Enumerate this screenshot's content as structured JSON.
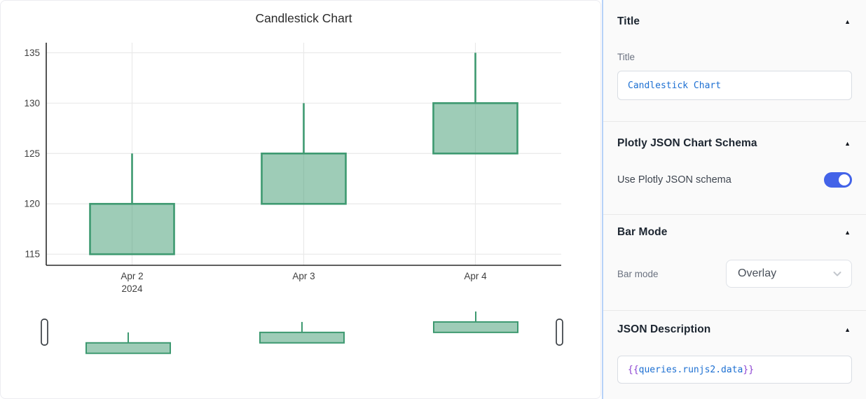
{
  "chart_data": {
    "type": "candlestick",
    "title": "Candlestick Chart",
    "categories": [
      "Apr 2",
      "Apr 3",
      "Apr 4"
    ],
    "x_axis_year_label": "2024",
    "ohlc": [
      {
        "x": "Apr 2",
        "open": 115,
        "high": 125,
        "low": 115,
        "close": 120
      },
      {
        "x": "Apr 3",
        "open": 120,
        "high": 130,
        "low": 120,
        "close": 125
      },
      {
        "x": "Apr 4",
        "open": 125,
        "high": 135,
        "low": 125,
        "close": 130
      }
    ],
    "yticks": [
      115,
      120,
      125,
      130,
      135
    ],
    "ylim": [
      113.9,
      136.0
    ],
    "grid": true,
    "legend": "none",
    "rangeslider": true,
    "colors": {
      "increasing_line": "#3D9970",
      "increasing_fill": "rgba(61,153,112,0.5)",
      "gridline": "#e9e9e9",
      "axis_line": "#2a2a2a"
    }
  },
  "inspector": {
    "accent_color": "#4363e8",
    "sections": {
      "title": {
        "header": "Title",
        "field_label": "Title",
        "field_value": "Candlestick Chart"
      },
      "schema": {
        "header": "Plotly JSON Chart Schema",
        "toggle_label": "Use Plotly JSON schema",
        "toggle_state": "on"
      },
      "bar_mode": {
        "header": "Bar Mode",
        "field_label": "Bar mode",
        "selected_option": "Overlay"
      },
      "json_description": {
        "header": "JSON Description",
        "field_value": "{{queries.runjs2.data}}"
      }
    }
  }
}
